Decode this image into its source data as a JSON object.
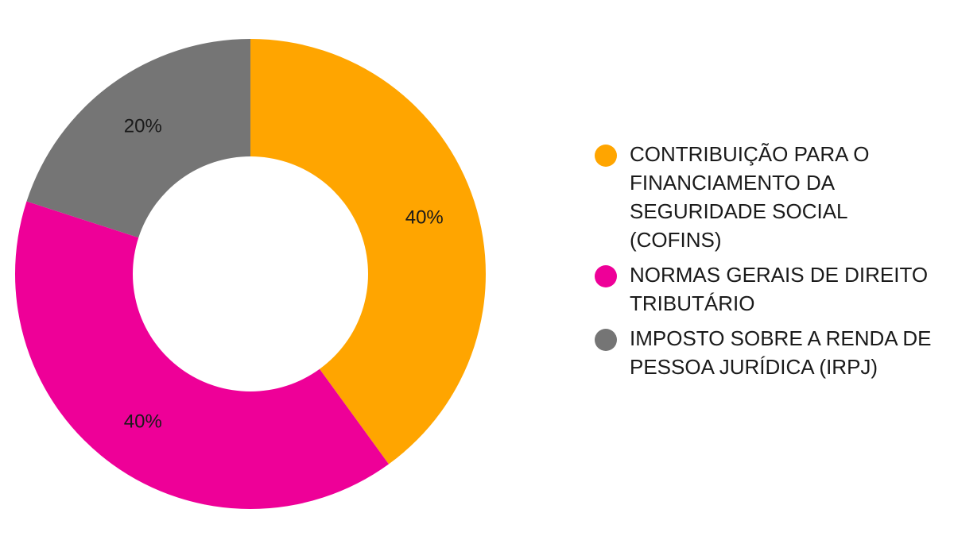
{
  "chart_data": {
    "type": "pie",
    "donut": true,
    "legend_position": "right",
    "slices": [
      {
        "name": "CONTRIBUIÇÃO PARA O FINANCIAMENTO DA SEGURIDADE SOCIAL (COFINS)",
        "value": 40,
        "label": "40%",
        "color": "#FFA500"
      },
      {
        "name": "NORMAS GERAIS DE DIREITO TRIBUTÁRIO",
        "value": 40,
        "label": "40%",
        "color": "#EE0098"
      },
      {
        "name": "IMPOSTO SOBRE A RENDA DE PESSOA JURÍDICA (IRPJ)",
        "value": 20,
        "label": "20%",
        "color": "#757575"
      }
    ]
  }
}
